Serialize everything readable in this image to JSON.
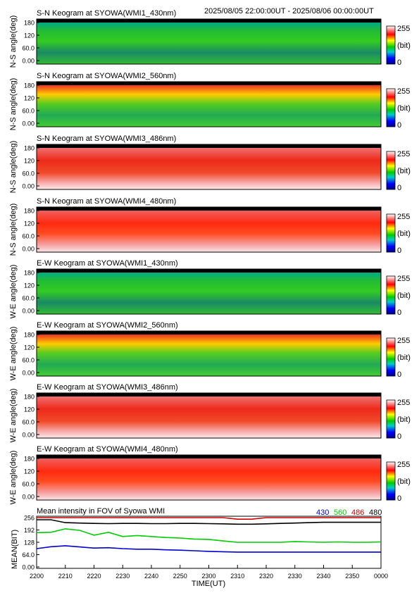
{
  "header": {
    "time_range": "2025/08/05 22:00:00UT - 2025/08/06 00:00:00UT"
  },
  "panels": [
    {
      "title": "S-N Keogram at SYOWA(WMI1_430nm)",
      "ylabel": "N-S angle(deg)",
      "yticks": [
        "180",
        "120",
        "60.0",
        "0.00"
      ],
      "scheme": "green"
    },
    {
      "title": "S-N Keogram at SYOWA(WMI2_560nm)",
      "ylabel": "N-S angle(deg)",
      "yticks": [
        "180",
        "120",
        "60.0",
        "0.00"
      ],
      "scheme": "green-hot"
    },
    {
      "title": "S-N Keogram at SYOWA(WMI3_486nm)",
      "ylabel": "N-S angle(deg)",
      "yticks": [
        "180",
        "120",
        "60.0",
        "0.00"
      ],
      "scheme": "red"
    },
    {
      "title": "S-N Keogram at SYOWA(WMI4_480nm)",
      "ylabel": "N-S angle(deg)",
      "yticks": [
        "180",
        "120",
        "60.0",
        "0.00"
      ],
      "scheme": "red-strong"
    },
    {
      "title": "E-W Keogram at SYOWA(WMI1_430nm)",
      "ylabel": "W-E angle(deg)",
      "yticks": [
        "180",
        "120",
        "60.0",
        "0.00"
      ],
      "scheme": "green"
    },
    {
      "title": "E-W Keogram at SYOWA(WMI2_560nm)",
      "ylabel": "W-E angle(deg)",
      "yticks": [
        "180",
        "120",
        "60.0",
        "0.00"
      ],
      "scheme": "green-hot"
    },
    {
      "title": "E-W Keogram at SYOWA(WMI3_486nm)",
      "ylabel": "W-E angle(deg)",
      "yticks": [
        "180",
        "120",
        "60.0",
        "0.00"
      ],
      "scheme": "red"
    },
    {
      "title": "E-W Keogram at SYOWA(WMI4_480nm)",
      "ylabel": "W-E angle(deg)",
      "yticks": [
        "180",
        "120",
        "60.0",
        "0.00"
      ],
      "scheme": "red-strong"
    }
  ],
  "colorbar": {
    "max_label": "255",
    "unit_label": "(bit)",
    "min_label": "0"
  },
  "x_axis": {
    "label": "TIME(UT)",
    "ticks": [
      "2200",
      "2210",
      "2220",
      "2230",
      "2240",
      "2250",
      "2300",
      "2310",
      "2320",
      "2330",
      "2340",
      "2350",
      "0000"
    ]
  },
  "chart_data": {
    "type": "line",
    "title": "Mean intensity in FOV of Syowa WMI",
    "xlabel": "TIME(UT)",
    "ylabel": "MEAN(BIT)",
    "ylim": [
      0,
      256
    ],
    "yticks": [
      "256",
      "192",
      "128",
      "64.0",
      "0.00"
    ],
    "x": [
      "2200",
      "2205",
      "2210",
      "2215",
      "2220",
      "2225",
      "2230",
      "2235",
      "2240",
      "2245",
      "2250",
      "2255",
      "2300",
      "2305",
      "2310",
      "2315",
      "2320",
      "2325",
      "2330",
      "2335",
      "2340",
      "2345",
      "2350",
      "2355",
      "0000"
    ],
    "series": [
      {
        "name": "430",
        "color": "#0000cc",
        "values": [
          95,
          105,
          110,
          104,
          98,
          100,
          95,
          92,
          92,
          89,
          87,
          84,
          81,
          79,
          77,
          77,
          77,
          77,
          77,
          77,
          77,
          77,
          77,
          77,
          77
        ]
      },
      {
        "name": "560",
        "color": "#00cc00",
        "values": [
          178,
          180,
          198,
          190,
          165,
          180,
          158,
          163,
          158,
          153,
          150,
          145,
          143,
          135,
          128,
          128,
          128,
          128,
          132,
          130,
          128,
          130,
          128,
          128,
          130
        ]
      },
      {
        "name": "486",
        "color": "#cc0000",
        "values": [
          256,
          256,
          256,
          256,
          256,
          256,
          256,
          256,
          256,
          256,
          256,
          256,
          256,
          256,
          248,
          248,
          256,
          256,
          256,
          256,
          256,
          256,
          256,
          256,
          256
        ]
      },
      {
        "name": "480",
        "color": "#000000",
        "values": [
          245,
          245,
          230,
          228,
          226,
          225,
          226,
          226,
          225,
          225,
          226,
          226,
          225,
          224,
          222,
          222,
          224,
          226,
          228,
          230,
          232,
          232,
          232,
          232,
          232
        ]
      }
    ],
    "legend_position": "top-right",
    "grid": false
  },
  "colors": {
    "frame": "#000000",
    "background": "#ffffff"
  }
}
